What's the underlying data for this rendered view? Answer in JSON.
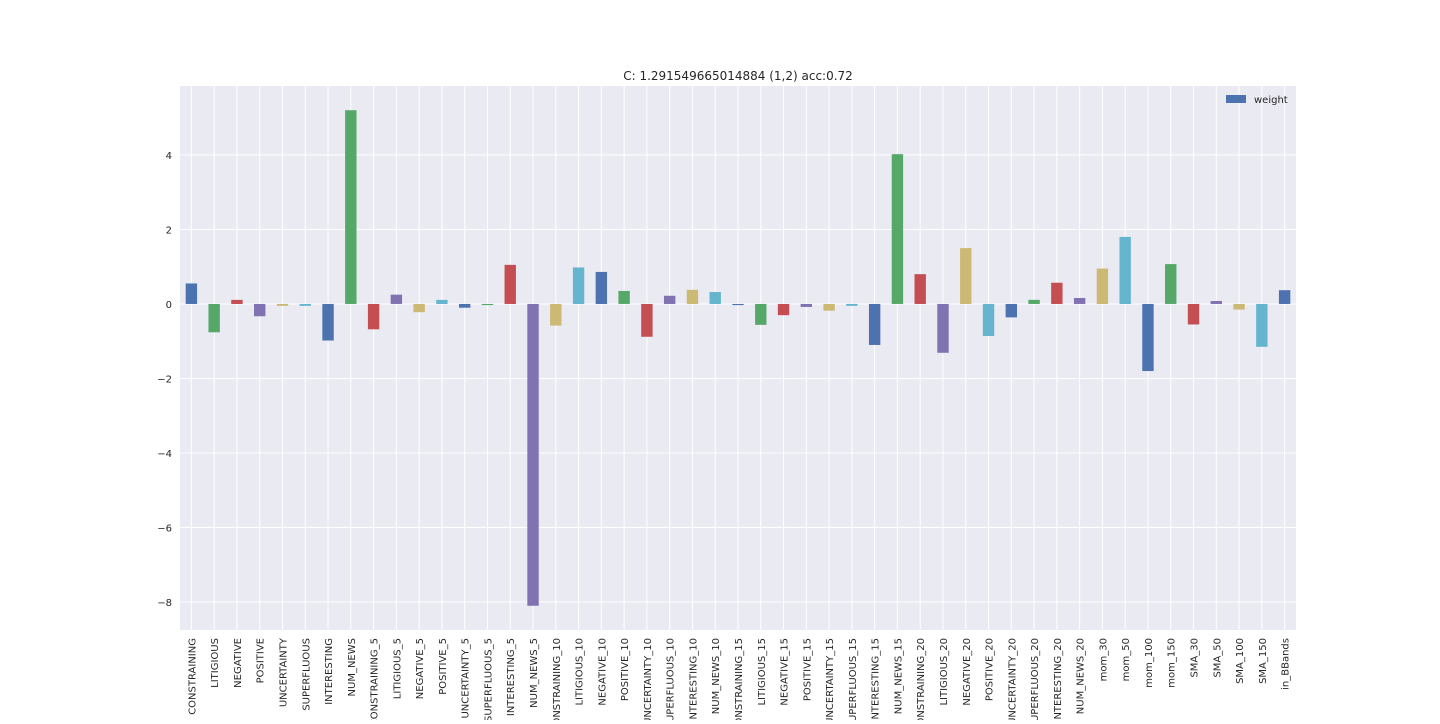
{
  "chart_data": {
    "type": "bar",
    "title": "C: 1.291549665014884 (1,2) acc:0.72",
    "xlabel": "",
    "ylabel": "",
    "ylim": [
      -8.75,
      5.85
    ],
    "yticks": [
      -8,
      -6,
      -4,
      -2,
      0,
      2,
      4
    ],
    "ytick_labels": [
      "−8",
      "−6",
      "−4",
      "−2",
      "0",
      "2",
      "4"
    ],
    "grid": true,
    "legend": {
      "position": "top-right",
      "entries": [
        "weight"
      ]
    },
    "palette": [
      "#4c72b0",
      "#55a868",
      "#c44e52",
      "#8172b2",
      "#ccb974",
      "#64b5cd"
    ],
    "background": "#eaeaf2",
    "categories": [
      "CONSTRAINING",
      "LITIGIOUS",
      "NEGATIVE",
      "POSITIVE",
      "UNCERTAINTY",
      "SUPERFLUOUS",
      "INTERESTING",
      "NUM_NEWS",
      "CONSTRAINING_5",
      "LITIGIOUS_5",
      "NEGATIVE_5",
      "POSITIVE_5",
      "UNCERTAINTY_5",
      "SUPERFLUOUS_5",
      "INTERESTING_5",
      "NUM_NEWS_5",
      "CONSTRAINING_10",
      "LITIGIOUS_10",
      "NEGATIVE_10",
      "POSITIVE_10",
      "UNCERTAINTY_10",
      "SUPERFLUOUS_10",
      "INTERESTING_10",
      "NUM_NEWS_10",
      "CONSTRAINING_15",
      "LITIGIOUS_15",
      "NEGATIVE_15",
      "POSITIVE_15",
      "UNCERTAINTY_15",
      "SUPERFLUOUS_15",
      "INTERESTING_15",
      "NUM_NEWS_15",
      "CONSTRAINING_20",
      "LITIGIOUS_20",
      "NEGATIVE_20",
      "POSITIVE_20",
      "UNCERTAINTY_20",
      "SUPERFLUOUS_20",
      "INTERESTING_20",
      "NUM_NEWS_20",
      "mom_30",
      "mom_50",
      "mom_100",
      "mom_150",
      "SMA_30",
      "SMA_50",
      "SMA_100",
      "SMA_150",
      "in_BBands"
    ],
    "series": [
      {
        "name": "weight",
        "values": [
          0.55,
          -0.76,
          0.11,
          -0.33,
          -0.05,
          -0.05,
          -0.98,
          5.2,
          -0.68,
          0.25,
          -0.22,
          0.11,
          -0.1,
          -0.03,
          1.05,
          -8.1,
          -0.58,
          0.98,
          0.86,
          0.35,
          -0.88,
          0.22,
          0.38,
          0.32,
          -0.03,
          -0.56,
          -0.3,
          -0.08,
          -0.18,
          -0.05,
          -1.1,
          4.02,
          0.8,
          -1.31,
          1.5,
          -0.86,
          -0.36,
          0.11,
          0.57,
          0.16,
          0.95,
          1.8,
          -1.8,
          1.07,
          -0.55,
          0.08,
          -0.15,
          -1.15,
          0.37
        ]
      }
    ]
  }
}
